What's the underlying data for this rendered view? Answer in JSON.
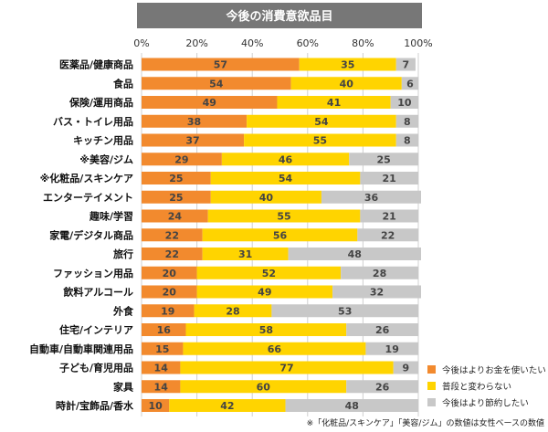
{
  "chart_data": {
    "type": "bar",
    "orientation": "horizontal",
    "stacked": true,
    "title": "今後の消費意欲品目",
    "x_ticks": [
      "0%",
      "20%",
      "40%",
      "60%",
      "80%",
      "100%"
    ],
    "xlim": [
      0,
      100
    ],
    "grid": true,
    "legend_position": "bottom-right",
    "categories": [
      "医薬品/健康商品",
      "食品",
      "保険/運用商品",
      "バス・トイレ用品",
      "キッチン用品",
      "※美容/ジム",
      "※化粧品/スキンケア",
      "エンターテイメント",
      "趣味/学習",
      "家電/デジタル商品",
      "旅行",
      "ファッション用品",
      "飲料アルコール",
      "外食",
      "住宅/インテリア",
      "自動車/自動車関連用品",
      "子ども/育児用品",
      "家具",
      "時計/宝飾品/香水"
    ],
    "series": [
      {
        "name": "今後はよりお金を使いたい",
        "color": "#f28a2e",
        "values": [
          57,
          54,
          49,
          38,
          37,
          29,
          25,
          25,
          24,
          22,
          22,
          20,
          20,
          19,
          16,
          15,
          14,
          14,
          10
        ]
      },
      {
        "name": "普段と変わらない",
        "color": "#ffd400",
        "values": [
          35,
          40,
          41,
          54,
          55,
          46,
          54,
          40,
          55,
          56,
          31,
          52,
          49,
          28,
          58,
          66,
          77,
          60,
          42
        ]
      },
      {
        "name": "今後はより節約したい",
        "color": "#c8c8c8",
        "values": [
          7,
          6,
          10,
          8,
          8,
          25,
          21,
          36,
          21,
          22,
          48,
          28,
          32,
          53,
          26,
          19,
          9,
          26,
          48
        ]
      }
    ],
    "footnote": "※「化粧品/スキンケア」「美容/ジム」の数値は女性ベースの数値"
  }
}
